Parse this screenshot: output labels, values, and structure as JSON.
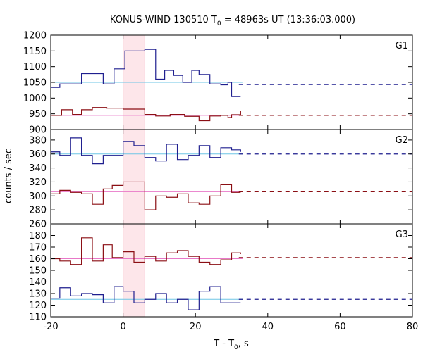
{
  "chart_data": {
    "type": "line",
    "title": {
      "prefix": "KONUS-WIND 130510 T",
      "sub": "0",
      "suffix": " = 48963s UT (13:36:03.000)"
    },
    "xlabel": {
      "prefix": "T - T",
      "sub": "0",
      "suffix": ", s"
    },
    "ylabel": "counts / sec",
    "xlim": [
      -20,
      80
    ],
    "x_ticks": [
      -20,
      0,
      20,
      40,
      60,
      80
    ],
    "highlight_interval": [
      0,
      6
    ],
    "colors": {
      "blue": "#1f1f8f",
      "red": "#8b0f14",
      "cyan": "#6ec6e6",
      "pink": "#e878c8",
      "band": "#fde6ea"
    },
    "panels": [
      {
        "label": "G1",
        "ylim": [
          900,
          1200
        ],
        "y_ticks": [
          900,
          950,
          1000,
          1050,
          1100,
          1150,
          1200
        ],
        "series": [
          {
            "color": "blue",
            "edges": [
              -20,
              -17.5,
              -15,
              -11.5,
              -5.5,
              -2.5,
              0.5,
              6,
              9,
              11.5,
              14,
              16.5,
              19,
              21,
              24,
              27,
              29,
              30,
              32.5
            ],
            "values": [
              1034,
              1045,
              1045,
              1078,
              1045,
              1093,
              1150,
              1155,
              1060,
              1088,
              1072,
              1050,
              1088,
              1075,
              1045,
              1042,
              1050,
              1005
            ],
            "background": 1050,
            "background_end": 33,
            "dash_level": 1043,
            "dash_range": [
              32,
              80
            ]
          },
          {
            "color": "red",
            "edges": [
              -20,
              -17,
              -14,
              -11.5,
              -8.5,
              -4.5,
              0,
              6,
              9,
              13,
              17,
              21,
              24,
              27,
              29,
              30,
              32.5
            ],
            "values": [
              945,
              963,
              948,
              963,
              970,
              968,
              965,
              948,
              943,
              948,
              942,
              928,
              943,
              945,
              938,
              947,
              960
            ],
            "background": 945,
            "background_end": 33,
            "dash_level": 945,
            "dash_range": [
              32,
              80
            ]
          }
        ]
      },
      {
        "label": "G2",
        "ylim": [
          260,
          395
        ],
        "y_ticks": [
          260,
          280,
          300,
          320,
          340,
          360,
          380
        ],
        "series": [
          {
            "color": "blue",
            "edges": [
              -20,
              -17.5,
              -14.5,
              -11.5,
              -8.5,
              -5.5,
              0,
              3,
              6,
              9,
              12,
              15,
              18,
              21,
              24,
              27,
              30,
              32.5
            ],
            "values": [
              363,
              358,
              383,
              358,
              346,
              358,
              378,
              372,
              355,
              350,
              374,
              352,
              358,
              372,
              355,
              369,
              366,
              363
            ],
            "background": 360,
            "background_end": 33,
            "dash_level": 360,
            "dash_range": [
              32,
              80
            ]
          },
          {
            "color": "red",
            "edges": [
              -20,
              -17.5,
              -14.5,
              -11.5,
              -8.5,
              -5.5,
              -3,
              0,
              6,
              9,
              12,
              15,
              18,
              21,
              24,
              27,
              30,
              32.5
            ],
            "values": [
              303,
              308,
              305,
              303,
              288,
              310,
              315,
              320,
              280,
              300,
              298,
              303,
              290,
              288,
              300,
              316,
              305,
              305
            ],
            "background": 306,
            "background_end": 33,
            "dash_level": 306,
            "dash_range": [
              32,
              80
            ]
          }
        ]
      },
      {
        "label": "G3",
        "ylim": [
          110,
          190
        ],
        "y_ticks": [
          110,
          120,
          130,
          140,
          150,
          160,
          170,
          180
        ],
        "series": [
          {
            "color": "red",
            "edges": [
              -20,
              -17.5,
              -14.5,
              -11.5,
              -8.5,
              -5.5,
              -3,
              0,
              3,
              6,
              9,
              12,
              15,
              18,
              21,
              24,
              27,
              30,
              32.5
            ],
            "values": [
              160,
              158,
              155,
              178,
              158,
              172,
              161,
              166,
              157,
              162,
              158,
              165,
              167,
              162,
              157,
              155,
              159,
              165,
              164
            ],
            "background": 160,
            "background_end": 33,
            "dash_level": 161,
            "dash_range": [
              32,
              80
            ]
          },
          {
            "color": "blue",
            "edges": [
              -20,
              -17.5,
              -14.5,
              -11.5,
              -8.5,
              -5.5,
              -2.5,
              0,
              3,
              6,
              9,
              12,
              15,
              18,
              21,
              24,
              27,
              32.5
            ],
            "values": [
              126,
              135,
              128,
              130,
              129,
              122,
              136,
              132,
              122,
              125,
              130,
              122,
              125,
              116,
              132,
              136,
              122
            ],
            "background": 125,
            "background_end": 33,
            "dash_level": 125,
            "dash_range": [
              32,
              80
            ]
          }
        ]
      }
    ]
  }
}
